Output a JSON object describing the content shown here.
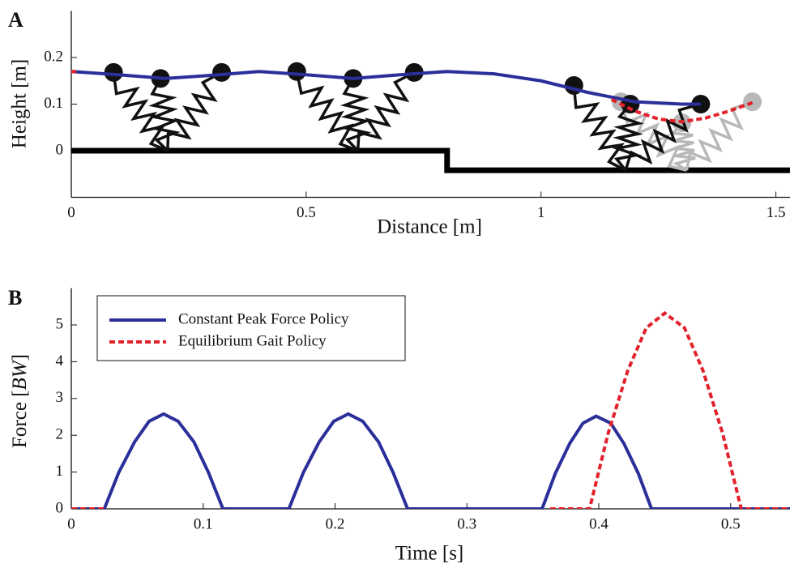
{
  "chart_data": [
    {
      "type": "line",
      "panel": "A",
      "xlabel": "Distance [m]",
      "ylabel": "Height [m]",
      "xlim": [
        0,
        1.53
      ],
      "ylim": [
        -0.1,
        0.3
      ],
      "xticks": [
        0,
        0.5,
        1,
        1.5
      ],
      "yticks": [
        0,
        0.1,
        0.2
      ],
      "series": [
        {
          "color": "#2b2f9a",
          "dashed": false,
          "x": [
            0,
            0.1,
            0.2,
            0.3,
            0.4,
            0.5,
            0.6,
            0.7,
            0.8,
            0.9,
            1.0,
            1.1,
            1.2,
            1.3,
            1.34
          ],
          "values": [
            0.17,
            0.163,
            0.155,
            0.162,
            0.17,
            0.163,
            0.155,
            0.163,
            0.17,
            0.165,
            0.15,
            0.125,
            0.105,
            0.1,
            0.1
          ]
        },
        {
          "color": "#e3212b",
          "dashed": true,
          "x": [
            0,
            0.01,
            1.1,
            1.15,
            1.2,
            1.25,
            1.3,
            1.35,
            1.4,
            1.45
          ],
          "values": [
            0.17,
            0.17,
            null,
            0.11,
            0.085,
            0.068,
            0.062,
            0.07,
            0.085,
            0.103
          ]
        }
      ],
      "ground": {
        "x": [
          0,
          0.8,
          0.8,
          1.53
        ],
        "y": [
          0,
          0,
          -0.042,
          -0.042
        ]
      },
      "bodies": [
        {
          "color": "#b8b8b8",
          "masses_x": [
            1.17,
            1.3,
            1.45
          ],
          "masses_y": [
            0.105,
            0.06,
            0.105
          ],
          "foot": [
            1.31,
            -0.042
          ]
        },
        {
          "color": "#111111",
          "masses_x": [
            0.09,
            0.19,
            0.32
          ],
          "masses_y": [
            0.168,
            0.155,
            0.168
          ],
          "foot": [
            0.205,
            0
          ]
        },
        {
          "color": "#111111",
          "masses_x": [
            0.48,
            0.6,
            0.73
          ],
          "masses_y": [
            0.17,
            0.155,
            0.168
          ],
          "foot": [
            0.61,
            0
          ]
        },
        {
          "color": "#111111",
          "masses_x": [
            1.07,
            1.19,
            1.34
          ],
          "masses_y": [
            0.14,
            0.1,
            0.1
          ],
          "foot": [
            1.18,
            -0.042
          ]
        }
      ]
    },
    {
      "type": "line",
      "panel": "B",
      "xlabel": "Time [s]",
      "ylabel_parts": [
        "Force [",
        "BW",
        "]"
      ],
      "xlim": [
        0,
        0.545
      ],
      "ylim": [
        0,
        6
      ],
      "xticks": [
        0,
        0.1,
        0.2,
        0.3,
        0.4,
        0.5
      ],
      "yticks": [
        0,
        1,
        2,
        3,
        4,
        5
      ],
      "series": [
        {
          "name": "Constant Peak Force Policy",
          "color": "#2b2f9a",
          "dashed": false,
          "x": [
            0,
            0.025,
            0.036,
            0.048,
            0.059,
            0.07,
            0.081,
            0.093,
            0.104,
            0.115,
            0.165,
            0.176,
            0.188,
            0.199,
            0.21,
            0.221,
            0.233,
            0.244,
            0.255,
            0.357,
            0.367,
            0.378,
            0.388,
            0.398,
            0.409,
            0.419,
            0.43,
            0.44,
            0.545
          ],
          "values": [
            0,
            0,
            0.99,
            1.82,
            2.38,
            2.58,
            2.38,
            1.82,
            0.99,
            0,
            0,
            0.99,
            1.82,
            2.38,
            2.58,
            2.38,
            1.82,
            0.99,
            0,
            0,
            0.96,
            1.78,
            2.33,
            2.52,
            2.33,
            1.78,
            0.96,
            0,
            0
          ]
        },
        {
          "name": "Equilibrium Gait Policy",
          "color": "#e3212b",
          "dashed": true,
          "x": [
            0,
            0.025,
            0.2,
            0.363,
            0.393,
            0.407,
            0.422,
            0.436,
            0.45,
            0.465,
            0.479,
            0.494,
            0.508,
            0.545
          ],
          "values": [
            0,
            0,
            null,
            0,
            0,
            2.04,
            3.76,
            4.92,
            5.32,
            4.92,
            3.76,
            2.04,
            0,
            0
          ]
        }
      ]
    }
  ]
}
